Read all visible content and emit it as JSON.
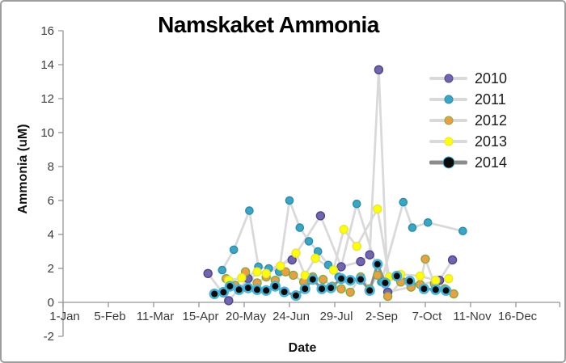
{
  "chart_data": {
    "type": "line",
    "title": "Namskaket Ammonia",
    "xlabel": "Date",
    "ylabel": "Ammonia (uM)",
    "grid": false,
    "legend_position": "right-inside",
    "x_axis": {
      "tick_labels": [
        "1-Jan",
        "5-Feb",
        "11-Mar",
        "15-Apr",
        "20-May",
        "24-Jun",
        "29-Jul",
        "2-Sep",
        "7-Oct",
        "11-Nov",
        "16-Dec"
      ],
      "tick_days": [
        1,
        36,
        71,
        106,
        141,
        176,
        211,
        246,
        281,
        316,
        351
      ],
      "extra_end_tick_day": 385,
      "range_days": [
        1,
        385
      ]
    },
    "y_axis": {
      "min": -2,
      "max": 16,
      "tick_step": 2,
      "ticks": [
        16,
        14,
        12,
        10,
        8,
        6,
        4,
        2,
        0,
        -2
      ]
    },
    "styles": {
      "axis_color": "#969696",
      "tick_text_color": "#3b3b3b",
      "light_line_color": "#d9d9d9",
      "dark_line_color": "#8c8c8c"
    },
    "series": [
      {
        "name": "2010",
        "marker_color": "#7066ab",
        "marker_border": "#4e4394",
        "line_color": "#d9d9d9",
        "line_width": 2.75,
        "marker_radius": 5,
        "points": [
          [
            113,
            1.7
          ],
          [
            129,
            0.1
          ],
          [
            144,
            1.4
          ],
          [
            178,
            2.5
          ],
          [
            200,
            5.1
          ],
          [
            216,
            2.1
          ],
          [
            231,
            2.4
          ],
          [
            238,
            2.8
          ],
          [
            245,
            13.7
          ],
          [
            252,
            0.6
          ],
          [
            292,
            1.3
          ],
          [
            302,
            2.5
          ]
        ]
      },
      {
        "name": "2011",
        "marker_color": "#38a7c6",
        "marker_border": "#2b8cad",
        "line_color": "#d9d9d9",
        "line_width": 2.75,
        "marker_radius": 4.6,
        "points": [
          [
            124,
            1.9
          ],
          [
            133,
            3.1
          ],
          [
            145,
            5.4
          ],
          [
            152,
            2.1
          ],
          [
            160,
            2.0
          ],
          [
            168,
            1.8
          ],
          [
            176,
            6.0
          ],
          [
            184,
            4.4
          ],
          [
            191,
            3.6
          ],
          [
            198,
            3.0
          ],
          [
            206,
            2.2
          ],
          [
            214,
            1.5
          ],
          [
            228,
            5.8
          ],
          [
            247,
            1.2
          ],
          [
            264,
            5.9
          ],
          [
            271,
            4.4
          ],
          [
            283,
            4.7
          ],
          [
            310,
            4.2
          ]
        ]
      },
      {
        "name": "2012",
        "marker_color": "#f09d42",
        "marker_border": "#7fae3f",
        "line_color": "#d9d9d9",
        "line_width": 2.75,
        "marker_radius": 5,
        "points": [
          [
            127,
            1.4
          ],
          [
            134,
            1.0
          ],
          [
            142,
            1.8
          ],
          [
            151,
            1.15
          ],
          [
            158,
            1.5
          ],
          [
            165,
            1.3
          ],
          [
            173,
            1.8
          ],
          [
            179,
            1.6
          ],
          [
            187,
            1.2
          ],
          [
            194,
            1.5
          ],
          [
            202,
            1.35
          ],
          [
            209,
            0.95
          ],
          [
            216,
            0.8
          ],
          [
            223,
            0.6
          ],
          [
            231,
            1.5
          ],
          [
            238,
            0.8
          ],
          [
            244,
            1.6
          ],
          [
            252,
            0.35
          ],
          [
            262,
            1.2
          ],
          [
            270,
            0.9
          ],
          [
            277,
            1.05
          ],
          [
            281,
            2.55
          ],
          [
            288,
            1.1
          ],
          [
            296,
            0.8
          ],
          [
            303,
            0.5
          ]
        ]
      },
      {
        "name": "2013",
        "marker_color": "#ffff00",
        "marker_border": "#e8e439",
        "line_color": "#d9d9d9",
        "line_width": 2.75,
        "marker_radius": 5,
        "points": [
          [
            129,
            1.3
          ],
          [
            139,
            1.45
          ],
          [
            151,
            1.8
          ],
          [
            158,
            1.7
          ],
          [
            169,
            2.15
          ],
          [
            181,
            2.9
          ],
          [
            188,
            1.6
          ],
          [
            196,
            2.6
          ],
          [
            210,
            1.9
          ],
          [
            218,
            4.3
          ],
          [
            228,
            3.3
          ],
          [
            244,
            5.5
          ],
          [
            253,
            1.5
          ],
          [
            262,
            1.65
          ],
          [
            277,
            1.55
          ],
          [
            289,
            1.3
          ],
          [
            299,
            1.4
          ]
        ]
      },
      {
        "name": "2014",
        "marker_color": "#0a0a0a",
        "marker_border": "#45b5dc",
        "line_color": "#8c8c8c",
        "line_width": 3.25,
        "marker_radius": 5.3,
        "points": [
          [
            118,
            0.5
          ],
          [
            125,
            0.6
          ],
          [
            130,
            0.95
          ],
          [
            137,
            0.75
          ],
          [
            144,
            0.85
          ],
          [
            151,
            0.75
          ],
          [
            158,
            0.7
          ],
          [
            165,
            0.95
          ],
          [
            172,
            0.62
          ],
          [
            181,
            0.4
          ],
          [
            188,
            0.8
          ],
          [
            194,
            1.35
          ],
          [
            201,
            0.8
          ],
          [
            208,
            0.85
          ],
          [
            216,
            1.4
          ],
          [
            223,
            1.3
          ],
          [
            231,
            1.35
          ],
          [
            238,
            0.7
          ],
          [
            244,
            2.25
          ],
          [
            250,
            1.15
          ],
          [
            259,
            1.55
          ],
          [
            269,
            1.25
          ],
          [
            280,
            0.8
          ],
          [
            289,
            0.75
          ],
          [
            297,
            0.7
          ]
        ]
      }
    ]
  }
}
